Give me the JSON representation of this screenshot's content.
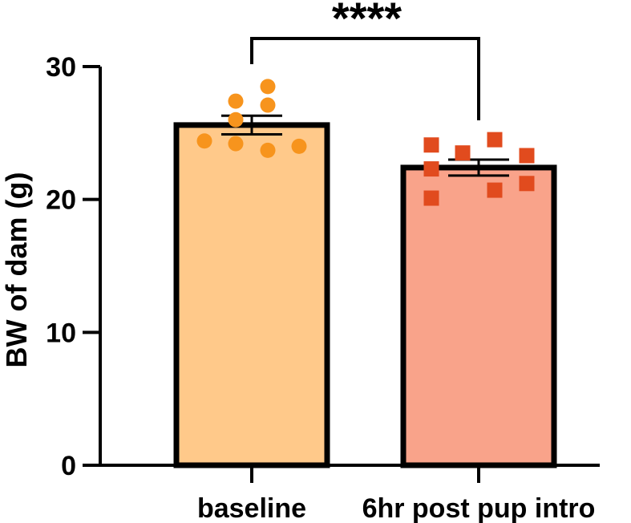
{
  "chart_data": {
    "type": "bar",
    "title": "",
    "ylabel": "BW of dam (g)",
    "xlabel": "",
    "ylim": [
      0,
      30
    ],
    "yticks": [
      0,
      10,
      20,
      30
    ],
    "grid": false,
    "categories": [
      "baseline",
      "6hr post pup intro"
    ],
    "series": [
      {
        "values": [
          25.6,
          22.4
        ],
        "errors": [
          0.7,
          0.6
        ],
        "colors": [
          "#FFC98A",
          "#F9A38A"
        ],
        "outline_color": "#000000"
      }
    ],
    "points": [
      {
        "category": "baseline",
        "marker": "circle",
        "color": "#F7941D",
        "values": [
          28.5,
          27.4,
          27.1,
          26.0,
          24.4,
          24.2,
          24.0,
          23.7
        ]
      },
      {
        "category": "6hr post pup intro",
        "marker": "square",
        "color": "#E14B1E",
        "values": [
          24.5,
          24.1,
          23.5,
          23.3,
          22.3,
          21.2,
          20.7,
          20.1
        ]
      }
    ],
    "significance": {
      "label": "****",
      "between": [
        "baseline",
        "6hr post pup intro"
      ]
    }
  }
}
